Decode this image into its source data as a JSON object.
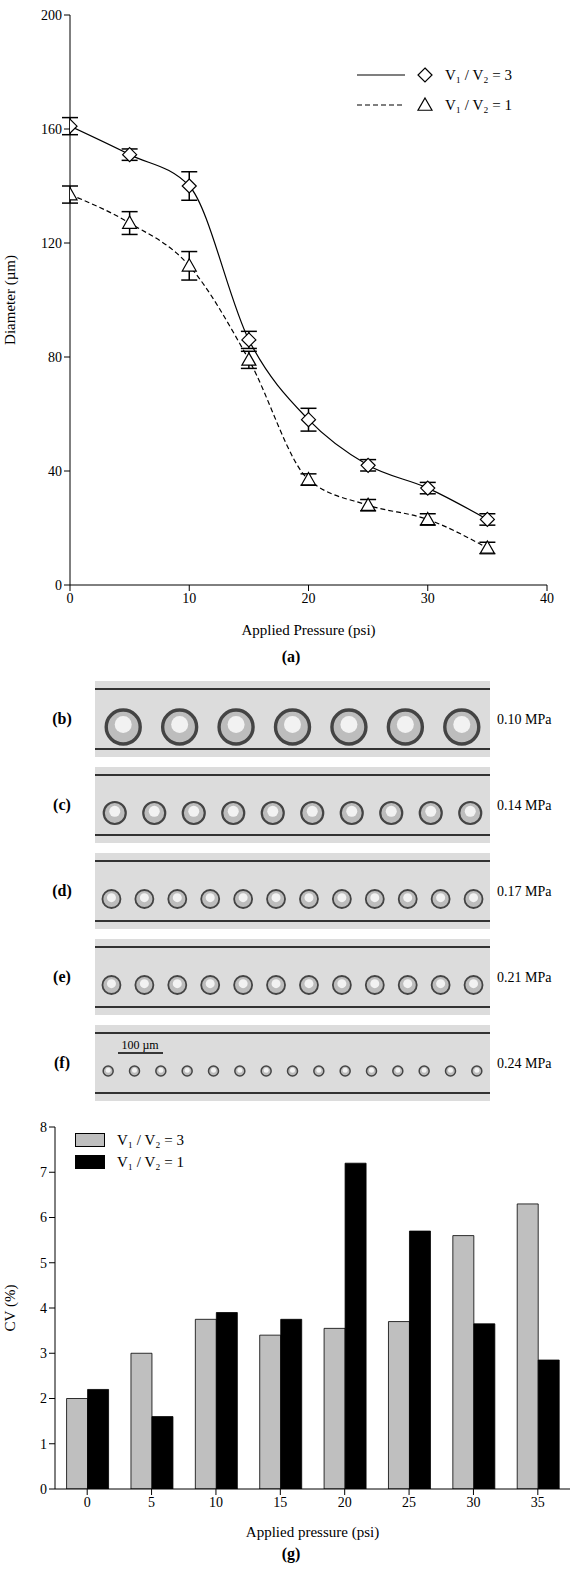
{
  "chart_data": [
    {
      "panel": "(a)",
      "type": "line",
      "x_label": "Applied Pressure (psi)",
      "y_label": "Diameter (µm)",
      "xlim": [
        0,
        40
      ],
      "ylim": [
        0,
        200
      ],
      "xticks": [
        0,
        10,
        20,
        30,
        40
      ],
      "yticks": [
        0,
        40,
        80,
        120,
        160,
        200
      ],
      "grid": false,
      "legend": "upper right",
      "x": [
        0,
        5,
        10,
        15,
        20,
        25,
        30,
        35
      ],
      "series": [
        {
          "name": "V₁ / V₂ = 3",
          "color": "#000000",
          "marker": "diamond",
          "line_style": "solid",
          "values": [
            161,
            151,
            140,
            86,
            58,
            42,
            34,
            23
          ],
          "error": [
            3,
            2,
            5,
            3,
            4,
            2,
            2,
            2
          ]
        },
        {
          "name": "V₁ / V₂ = 1",
          "color": "#000000",
          "marker": "triangle",
          "line_style": "dashed",
          "values": [
            137,
            127,
            112,
            79,
            37,
            28,
            23,
            13
          ],
          "error": [
            3,
            4,
            5,
            3,
            2,
            2,
            2,
            2
          ]
        }
      ]
    },
    {
      "panel": "(g)",
      "type": "bar",
      "x_label": "Applied  pressure (psi)",
      "y_label": "CV (%)",
      "ylim": [
        0,
        8
      ],
      "yticks": [
        0,
        1,
        2,
        3,
        4,
        5,
        6,
        7,
        8
      ],
      "grid": false,
      "legend": "upper left",
      "categories": [
        "0",
        "5",
        "10",
        "15",
        "20",
        "25",
        "30",
        "35"
      ],
      "series": [
        {
          "name": "V₁ / V₂ = 3",
          "color": "#bfbfbf",
          "values": [
            2.0,
            3.0,
            3.75,
            3.4,
            3.55,
            3.7,
            5.6,
            6.3
          ]
        },
        {
          "name": "V₁ / V₂ = 1",
          "color": "#000000",
          "values": [
            2.2,
            1.6,
            3.9,
            3.75,
            7.2,
            5.7,
            3.65,
            2.85
          ]
        }
      ]
    }
  ],
  "micrographs": [
    {
      "label": "(b)",
      "pressure": "0.10 MPa"
    },
    {
      "label": "(c)",
      "pressure": "0.14 MPa"
    },
    {
      "label": "(d)",
      "pressure": "0.17 MPa"
    },
    {
      "label": "(e)",
      "pressure": "0.21 MPa"
    },
    {
      "label": "(f)",
      "pressure": "0.24 MPa",
      "scale_bar": "100 µm"
    }
  ]
}
